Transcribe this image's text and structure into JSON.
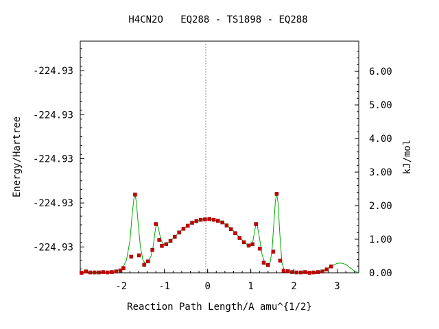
{
  "chart_data": {
    "type": "line",
    "title": "H4CN2O   EQ288 - TS1898 - EQ288",
    "xlabel": "Reaction Path Length/A amu^{1/2}",
    "ylabel_left": "Energy/Hartree",
    "ylabel_right": "kJ/mol",
    "xlim": [
      -2.95,
      3.5
    ],
    "ylim_right": [
      0,
      6.9
    ],
    "x_ticks": [
      -2,
      -1,
      0,
      1,
      2,
      3
    ],
    "x_tick_labels": [
      "-2",
      "-1",
      "0",
      "1",
      "2",
      "3"
    ],
    "left_ticks_kj": [
      0.77,
      2.08,
      3.4,
      4.71,
      6.02
    ],
    "left_tick_labels": [
      "-224.93",
      "-224.93",
      "-224.93",
      "-224.93",
      "-224.93"
    ],
    "right_ticks": [
      0,
      1,
      2,
      3,
      4,
      5,
      6
    ],
    "right_tick_labels": [
      "0.00",
      "1.00",
      "2.00",
      "3.00",
      "4.00",
      "5.00",
      "6.00"
    ],
    "ts_marker_x": 0,
    "line_color": "#00aa00",
    "point_color": "#cc0000",
    "curve": [
      [
        -2.95,
        0.0
      ],
      [
        -2.85,
        0.02
      ],
      [
        -2.75,
        0.01
      ],
      [
        -2.65,
        0.01
      ],
      [
        -2.55,
        0.01
      ],
      [
        -2.45,
        0.02
      ],
      [
        -2.35,
        0.01
      ],
      [
        -2.25,
        0.03
      ],
      [
        -2.15,
        0.05
      ],
      [
        -2.05,
        0.08
      ],
      [
        -1.97,
        0.14
      ],
      [
        -1.88,
        0.38
      ],
      [
        -1.8,
        0.95
      ],
      [
        -1.75,
        1.7
      ],
      [
        -1.71,
        2.2
      ],
      [
        -1.68,
        2.33
      ],
      [
        -1.65,
        2.1
      ],
      [
        -1.61,
        1.5
      ],
      [
        -1.56,
        0.8
      ],
      [
        -1.5,
        0.38
      ],
      [
        -1.44,
        0.28
      ],
      [
        -1.38,
        0.33
      ],
      [
        -1.31,
        0.5
      ],
      [
        -1.26,
        0.8
      ],
      [
        -1.22,
        1.2
      ],
      [
        -1.19,
        1.45
      ],
      [
        -1.16,
        1.43
      ],
      [
        -1.12,
        1.2
      ],
      [
        -1.08,
        0.98
      ],
      [
        -1.03,
        0.86
      ],
      [
        -0.97,
        0.84
      ],
      [
        -0.88,
        0.93
      ],
      [
        -0.78,
        1.05
      ],
      [
        -0.68,
        1.18
      ],
      [
        -0.58,
        1.3
      ],
      [
        -0.48,
        1.4
      ],
      [
        -0.38,
        1.48
      ],
      [
        -0.28,
        1.53
      ],
      [
        -0.18,
        1.57
      ],
      [
        -0.08,
        1.59
      ],
      [
        0.0,
        1.6
      ],
      [
        0.08,
        1.59
      ],
      [
        0.18,
        1.57
      ],
      [
        0.28,
        1.53
      ],
      [
        0.38,
        1.47
      ],
      [
        0.48,
        1.38
      ],
      [
        0.58,
        1.27
      ],
      [
        0.68,
        1.14
      ],
      [
        0.78,
        1.0
      ],
      [
        0.88,
        0.88
      ],
      [
        0.95,
        0.8
      ],
      [
        1.0,
        0.8
      ],
      [
        1.05,
        0.95
      ],
      [
        1.09,
        1.25
      ],
      [
        1.12,
        1.45
      ],
      [
        1.15,
        1.4
      ],
      [
        1.2,
        1.05
      ],
      [
        1.26,
        0.55
      ],
      [
        1.33,
        0.27
      ],
      [
        1.4,
        0.23
      ],
      [
        1.45,
        0.33
      ],
      [
        1.49,
        0.65
      ],
      [
        1.53,
        1.4
      ],
      [
        1.57,
        2.15
      ],
      [
        1.6,
        2.35
      ],
      [
        1.63,
        2.1
      ],
      [
        1.67,
        1.2
      ],
      [
        1.72,
        0.3
      ],
      [
        1.78,
        0.06
      ],
      [
        1.9,
        0.03
      ],
      [
        2.0,
        0.01
      ],
      [
        2.1,
        0.0
      ],
      [
        2.2,
        0.01
      ],
      [
        2.3,
        0.02
      ],
      [
        2.4,
        0.01
      ],
      [
        2.5,
        0.01
      ],
      [
        2.6,
        0.03
      ],
      [
        2.7,
        0.07
      ],
      [
        2.8,
        0.14
      ],
      [
        2.9,
        0.22
      ],
      [
        3.0,
        0.28
      ],
      [
        3.1,
        0.29
      ],
      [
        3.2,
        0.25
      ],
      [
        3.3,
        0.15
      ],
      [
        3.42,
        0.04
      ],
      [
        3.5,
        0.0
      ]
    ],
    "points": [
      [
        -2.92,
        0.0
      ],
      [
        -2.82,
        0.04
      ],
      [
        -2.72,
        0.01
      ],
      [
        -2.62,
        0.01
      ],
      [
        -2.52,
        0.01
      ],
      [
        -2.42,
        0.02
      ],
      [
        -2.32,
        0.01
      ],
      [
        -2.22,
        0.02
      ],
      [
        -2.12,
        0.04
      ],
      [
        -2.02,
        0.07
      ],
      [
        -1.95,
        0.14
      ],
      [
        -1.77,
        0.48
      ],
      [
        -1.68,
        2.33
      ],
      [
        -1.59,
        0.52
      ],
      [
        -1.47,
        0.24
      ],
      [
        -1.38,
        0.34
      ],
      [
        -1.28,
        0.68
      ],
      [
        -1.2,
        1.45
      ],
      [
        -1.12,
        0.98
      ],
      [
        -1.06,
        0.8
      ],
      [
        -0.96,
        0.85
      ],
      [
        -0.86,
        0.95
      ],
      [
        -0.76,
        1.07
      ],
      [
        -0.66,
        1.2
      ],
      [
        -0.56,
        1.31
      ],
      [
        -0.46,
        1.4
      ],
      [
        -0.36,
        1.49
      ],
      [
        -0.26,
        1.54
      ],
      [
        -0.16,
        1.58
      ],
      [
        -0.06,
        1.59
      ],
      [
        0.04,
        1.6
      ],
      [
        0.14,
        1.58
      ],
      [
        0.24,
        1.55
      ],
      [
        0.34,
        1.5
      ],
      [
        0.44,
        1.41
      ],
      [
        0.54,
        1.3
      ],
      [
        0.64,
        1.18
      ],
      [
        0.74,
        1.04
      ],
      [
        0.84,
        0.91
      ],
      [
        0.95,
        0.81
      ],
      [
        1.04,
        0.85
      ],
      [
        1.12,
        1.45
      ],
      [
        1.21,
        0.72
      ],
      [
        1.3,
        0.3
      ],
      [
        1.4,
        0.23
      ],
      [
        1.52,
        0.63
      ],
      [
        1.6,
        2.35
      ],
      [
        1.68,
        0.36
      ],
      [
        1.76,
        0.06
      ],
      [
        1.86,
        0.05
      ],
      [
        1.96,
        0.02
      ],
      [
        2.06,
        0.01
      ],
      [
        2.16,
        0.01
      ],
      [
        2.26,
        0.02
      ],
      [
        2.36,
        0.0
      ],
      [
        2.46,
        0.01
      ],
      [
        2.56,
        0.02
      ],
      [
        2.66,
        0.04
      ],
      [
        2.76,
        0.1
      ],
      [
        2.86,
        0.19
      ]
    ]
  }
}
